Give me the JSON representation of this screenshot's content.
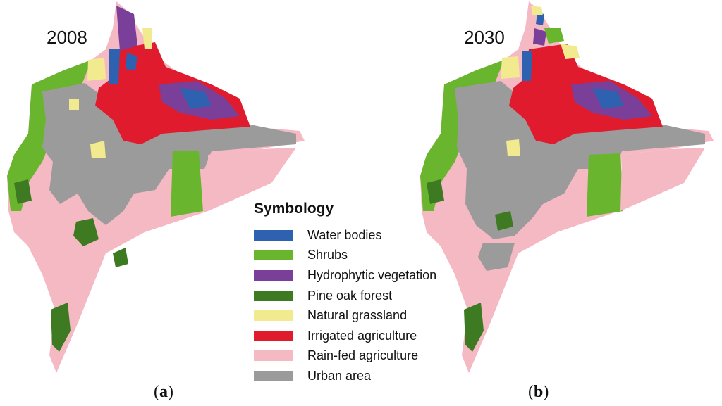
{
  "panels": [
    {
      "year": "2008",
      "caption_letter": "a"
    },
    {
      "year": "2030",
      "caption_letter": "b"
    }
  ],
  "legend": {
    "title": "Symbology",
    "items": [
      {
        "label": "Water bodies",
        "color": "#2e62b0"
      },
      {
        "label": "Shrubs",
        "color": "#6ab52e"
      },
      {
        "label": "Hydrophytic vegetation",
        "color": "#7a3f98"
      },
      {
        "label": "Pine oak forest",
        "color": "#3d7a22"
      },
      {
        "label": "Natural grassland",
        "color": "#f1ea8e"
      },
      {
        "label": "Irrigated agriculture",
        "color": "#e01b2d"
      },
      {
        "label": "Rain-fed agriculture",
        "color": "#f5b9c4"
      },
      {
        "label": "Urban area",
        "color": "#9b9b9b"
      }
    ]
  }
}
